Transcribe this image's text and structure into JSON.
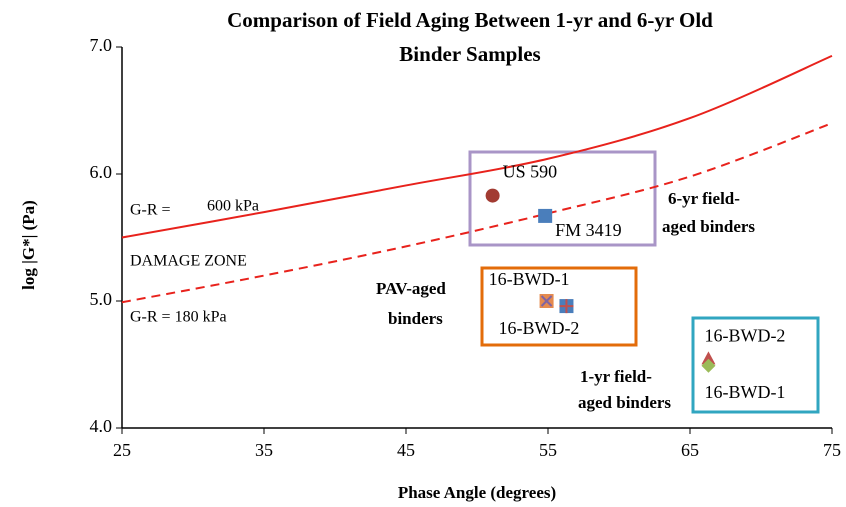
{
  "chart_data": {
    "type": "scatter",
    "title": [
      "Comparison of Field  Aging Between 1-yr and 6-yr Old",
      "Binder Samples"
    ],
    "xlabel": "Phase Angle (degrees)",
    "ylabel": "log |G*| (Pa)",
    "xlim": [
      25,
      75
    ],
    "ylim": [
      4,
      7
    ],
    "xticks": [
      25,
      35,
      45,
      55,
      65,
      75
    ],
    "yticks": [
      {
        "value": 4,
        "label": "4.0"
      },
      {
        "value": 5,
        "label": "5.0"
      },
      {
        "value": 6,
        "label": "6.0"
      },
      {
        "value": 7,
        "label": "7.0"
      }
    ],
    "curves": [
      {
        "style": "solid",
        "color": "#e8221c",
        "x": [
          25,
          35,
          45,
          55,
          65,
          75
        ],
        "values": [
          5.5,
          5.7,
          5.91,
          6.12,
          6.44,
          6.93
        ]
      },
      {
        "style": "dashed",
        "color": "#e8221c",
        "x": [
          25,
          35,
          45,
          55,
          65,
          75
        ],
        "values": [
          4.99,
          5.2,
          5.43,
          5.69,
          5.98,
          6.4
        ]
      }
    ],
    "series": [
      {
        "name": "US 590",
        "marker": "circle",
        "color": "#a23b32",
        "x": [
          51.1
        ],
        "values": [
          5.83
        ]
      },
      {
        "name": "FM 3419",
        "marker": "square",
        "color": "#4a7ebb",
        "x": [
          54.8
        ],
        "values": [
          5.67
        ]
      },
      {
        "name": "16-BWD-1",
        "marker": "square-x",
        "color": "#e58a4f",
        "x": [
          54.9
        ],
        "values": [
          5.0
        ]
      },
      {
        "name": "16-BWD-2",
        "marker": "square-plus",
        "color": "#4a7ebb",
        "x": [
          56.3
        ],
        "values": [
          4.96
        ]
      },
      {
        "name": "16-BWD-2",
        "marker": "triangle",
        "color": "#c0504d",
        "x": [
          66.3
        ],
        "values": [
          4.54
        ]
      },
      {
        "name": "16-BWD-1",
        "marker": "diamond",
        "color": "#9bbb59",
        "x": [
          66.3
        ],
        "values": [
          4.49
        ]
      }
    ],
    "annotations": [
      "G-R =",
      "600 kPa",
      "DAMAGE ZONE",
      "G-R = 180 kPa",
      "6-yr field-",
      "aged binders",
      "PAV-aged",
      "binders",
      "1-yr field-",
      "aged binders"
    ]
  }
}
